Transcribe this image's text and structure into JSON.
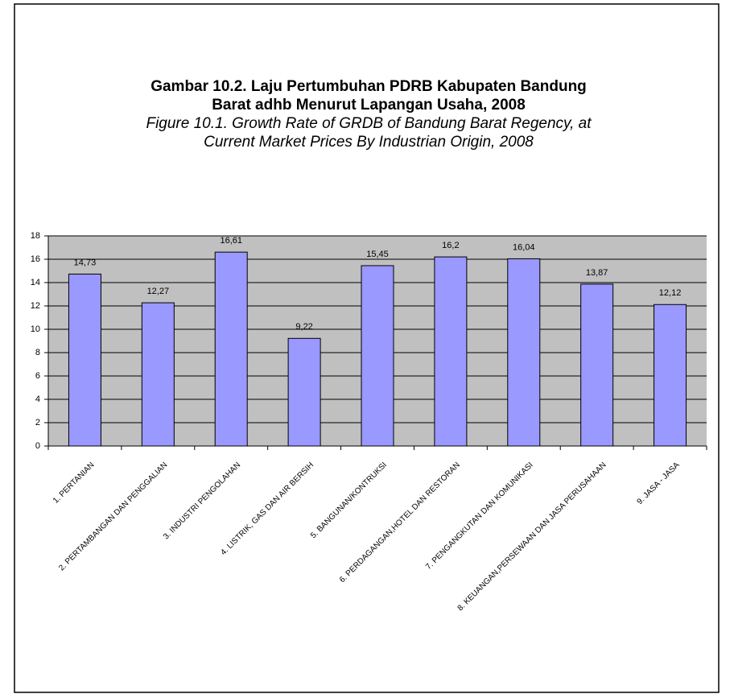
{
  "chart_data": {
    "type": "bar",
    "title": [
      "Gambar 10.2. Laju Pertumbuhan PDRB Kabupaten Bandung",
      "Barat adhb Menurut Lapangan Usaha, 2008"
    ],
    "subtitle": [
      "Figure 10.1. Growth Rate of GRDB of Bandung Barat Regency, at",
      "Current Market Prices By Industrian Origin, 2008"
    ],
    "categories": [
      "1. PERTANIAN",
      "2. PERTAMBANGAN DAN PENGGALIAN",
      "3. INDUSTRI PENGOLAHAN",
      "4. LISTRIK, GAS DAN AIR BERSIH",
      "5. BANGUNAN/KONTRUKSI",
      "6. PERDAGANGAN,HOTEL DAN RESTORAN",
      "7. PENGANGKUTAN DAN KOMUNIKASI",
      "8. KEUANGAN,PERSEWAAN DAN JASA PERUSAHAAN",
      "9. JASA - JASA"
    ],
    "values": [
      14.73,
      12.27,
      16.61,
      9.22,
      15.45,
      16.2,
      16.04,
      13.87,
      12.12
    ],
    "value_labels": [
      "14,73",
      "12,27",
      "16,61",
      "9,22",
      "15,45",
      "16,2",
      "16,04",
      "13,87",
      "12,12"
    ],
    "color": "#9999ff",
    "ylim": [
      0,
      18
    ],
    "yticks": [
      0,
      2,
      4,
      6,
      8,
      10,
      12,
      14,
      16,
      18
    ],
    "grid": true
  }
}
